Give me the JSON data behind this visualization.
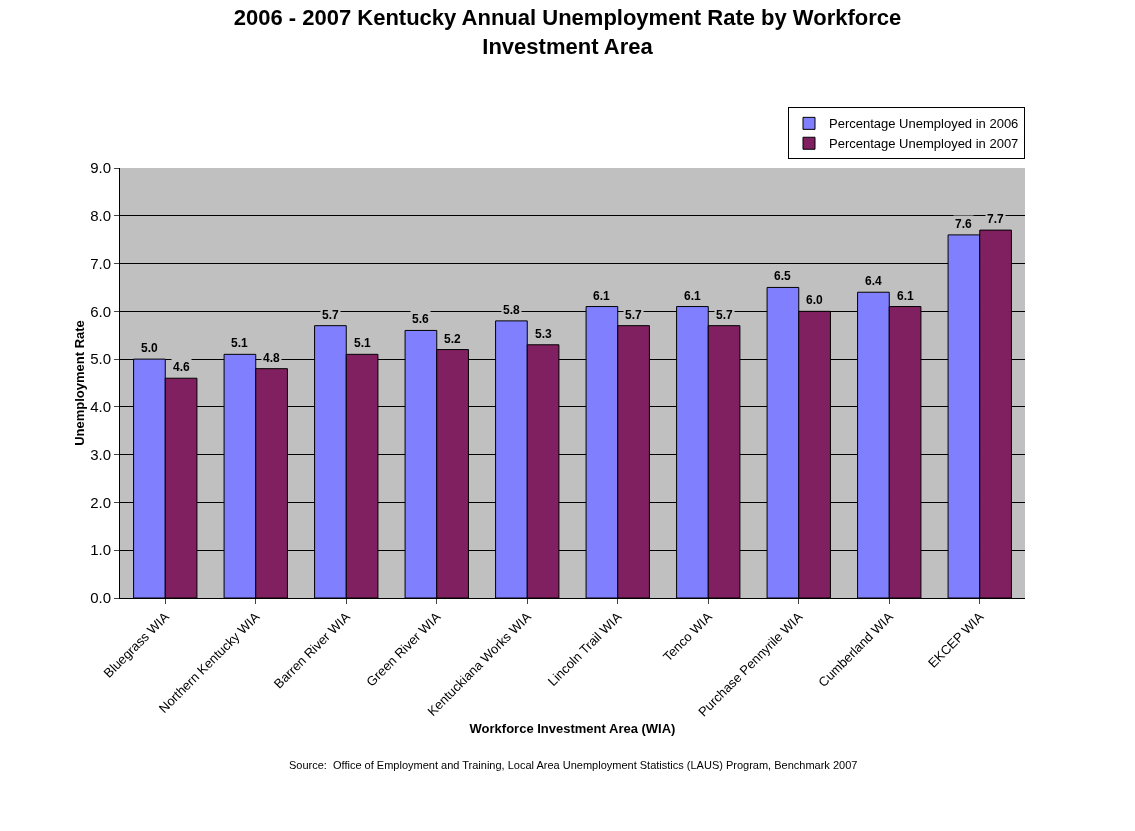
{
  "chart_data": {
    "type": "bar",
    "title": "2006 - 2007 Kentucky Annual Unemployment Rate by Workforce Investment Area",
    "xlabel": "Workforce Investment Area (WIA)",
    "ylabel": "Unemployment Rate",
    "categories": [
      "Bluegrass WIA",
      "Northern Kentucky WIA",
      "Barren River WIA",
      "Green River WIA",
      "Kentuckiana Works WIA",
      "Lincoln Trail WIA",
      "Tenco WIA",
      "Purchase Pennyrile WIA",
      "Cumberland WIA",
      "EKCEP WIA"
    ],
    "series": [
      {
        "name": "Percentage Unemployed in 2006",
        "color": "#8080ff",
        "values": [
          5.0,
          5.1,
          5.7,
          5.6,
          5.8,
          6.1,
          6.1,
          6.5,
          6.4,
          7.6
        ],
        "value_labels": [
          "5.0",
          "5.1",
          "5.7",
          "5.6",
          "5.8",
          "6.1",
          "6.1",
          "6.5",
          "6.4",
          "7.6"
        ]
      },
      {
        "name": "Percentage Unemployed in 2007",
        "color": "#802060",
        "values": [
          4.6,
          4.8,
          5.1,
          5.2,
          5.3,
          5.7,
          5.7,
          6.0,
          6.1,
          7.7
        ],
        "value_labels": [
          "4.6",
          "4.8",
          "5.1",
          "5.2",
          "5.3",
          "5.7",
          "5.7",
          "6.0",
          "6.1",
          "7.7"
        ]
      }
    ],
    "ylim": [
      0,
      9
    ],
    "yticks": [
      {
        "value": 0,
        "label": "0.0"
      },
      {
        "value": 1,
        "label": "1.0"
      },
      {
        "value": 2,
        "label": "2.0"
      },
      {
        "value": 3,
        "label": "3.0"
      },
      {
        "value": 4,
        "label": "4.0"
      },
      {
        "value": 5,
        "label": "5.0"
      },
      {
        "value": 6,
        "label": "6.0"
      },
      {
        "value": 7,
        "label": "7.0"
      },
      {
        "value": 8,
        "label": "8.0"
      },
      {
        "value": 9,
        "label": "9.0"
      }
    ],
    "grid": "y",
    "legend": "top right",
    "annotations": [
      "Source:  Office of Employment and Training, Local Area Unemployment Statistics (LAUS) Program, Benchmark 2007"
    ]
  }
}
